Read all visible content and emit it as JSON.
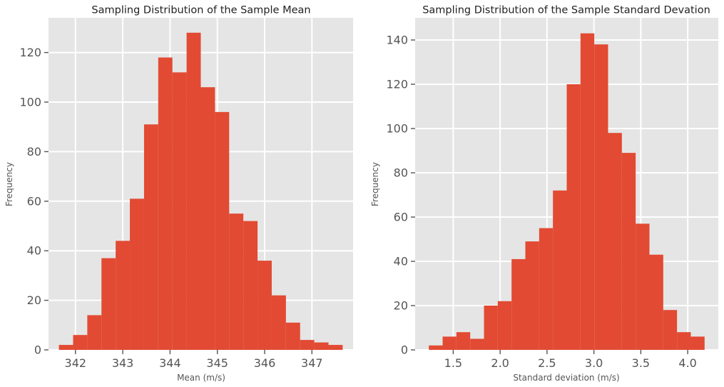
{
  "chart_data": [
    {
      "type": "bar",
      "title": "Sampling Distribution of the Sample Mean",
      "xlabel": "Mean (m/s)",
      "ylabel": "Frequency",
      "bin_edges": [
        341.65,
        341.95,
        342.25,
        342.55,
        342.85,
        343.15,
        343.45,
        343.75,
        344.05,
        344.35,
        344.65,
        344.95,
        345.25,
        345.55,
        345.85,
        346.15,
        346.45,
        346.75,
        347.05,
        347.35,
        347.65
      ],
      "values": [
        2,
        6,
        14,
        37,
        44,
        61,
        91,
        118,
        112,
        128,
        106,
        96,
        55,
        52,
        36,
        22,
        11,
        4,
        3,
        2
      ],
      "xlim": [
        341.43,
        347.87
      ],
      "ylim": [
        0,
        134
      ],
      "xticks": [
        342,
        343,
        344,
        345,
        346,
        347
      ],
      "yticks": [
        0,
        20,
        40,
        60,
        80,
        100,
        120
      ],
      "grid": true,
      "bar_color": "#E24A33",
      "background_color": "#E5E5E5"
    },
    {
      "type": "bar",
      "title": "Sampling Distribution of the Sample Standard Devation",
      "xlabel": "Standard deviation (m/s)",
      "ylabel": "Frequency",
      "bin_edges": [
        1.24,
        1.387,
        1.534,
        1.681,
        1.828,
        1.975,
        2.122,
        2.269,
        2.416,
        2.563,
        2.71,
        2.857,
        3.004,
        3.151,
        3.298,
        3.445,
        3.592,
        3.739,
        3.886,
        4.033,
        4.18
      ],
      "values": [
        2,
        6,
        8,
        5,
        20,
        22,
        41,
        49,
        55,
        72,
        120,
        143,
        138,
        98,
        89,
        57,
        43,
        18,
        8,
        6
      ],
      "xlim": [
        1.094,
        4.326
      ],
      "ylim": [
        0,
        150
      ],
      "xticks": [
        1.5,
        2.0,
        2.5,
        3.0,
        3.5,
        4.0
      ],
      "yticks": [
        0,
        20,
        40,
        60,
        80,
        100,
        120,
        140
      ],
      "grid": true,
      "bar_color": "#E24A33",
      "background_color": "#E5E5E5"
    }
  ]
}
